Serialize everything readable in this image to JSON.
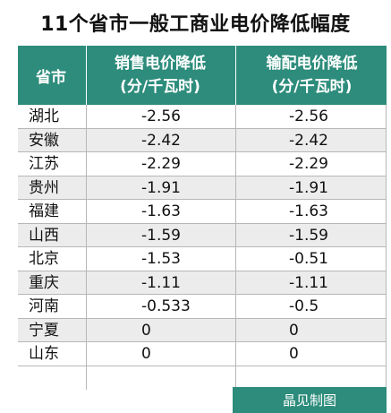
{
  "title": "11个省市一般工商业电价降低幅度",
  "header": {
    "province": "省市",
    "col1_line1": "销售电价降低",
    "col1_line2": "(分/千瓦时)",
    "col2_line1": "输配电价降低",
    "col2_line2": "(分/千瓦时)"
  },
  "rows": [
    {
      "province": "湖北",
      "sales": "-2.56",
      "transmission": "-2.56"
    },
    {
      "province": "安徽",
      "sales": "-2.42",
      "transmission": "-2.42"
    },
    {
      "province": "江苏",
      "sales": "-2.29",
      "transmission": "-2.29"
    },
    {
      "province": "贵州",
      "sales": "-1.91",
      "transmission": "-1.91"
    },
    {
      "province": "福建",
      "sales": "-1.63",
      "transmission": "-1.63"
    },
    {
      "province": "山西",
      "sales": "-1.59",
      "transmission": "-1.59"
    },
    {
      "province": "北京",
      "sales": "-1.53",
      "transmission": "-0.51"
    },
    {
      "province": "重庆",
      "sales": "-1.11",
      "transmission": "-1.11"
    },
    {
      "province": "河南",
      "sales": "-0.533",
      "transmission": "-0.5"
    },
    {
      "province": "宁夏",
      "sales": "0",
      "transmission": "0"
    },
    {
      "province": "山东",
      "sales": "0",
      "transmission": "0"
    }
  ],
  "footer": "晶见制图",
  "colors": {
    "header_bg": "#2d8c7b",
    "stripe": "#ececec"
  }
}
